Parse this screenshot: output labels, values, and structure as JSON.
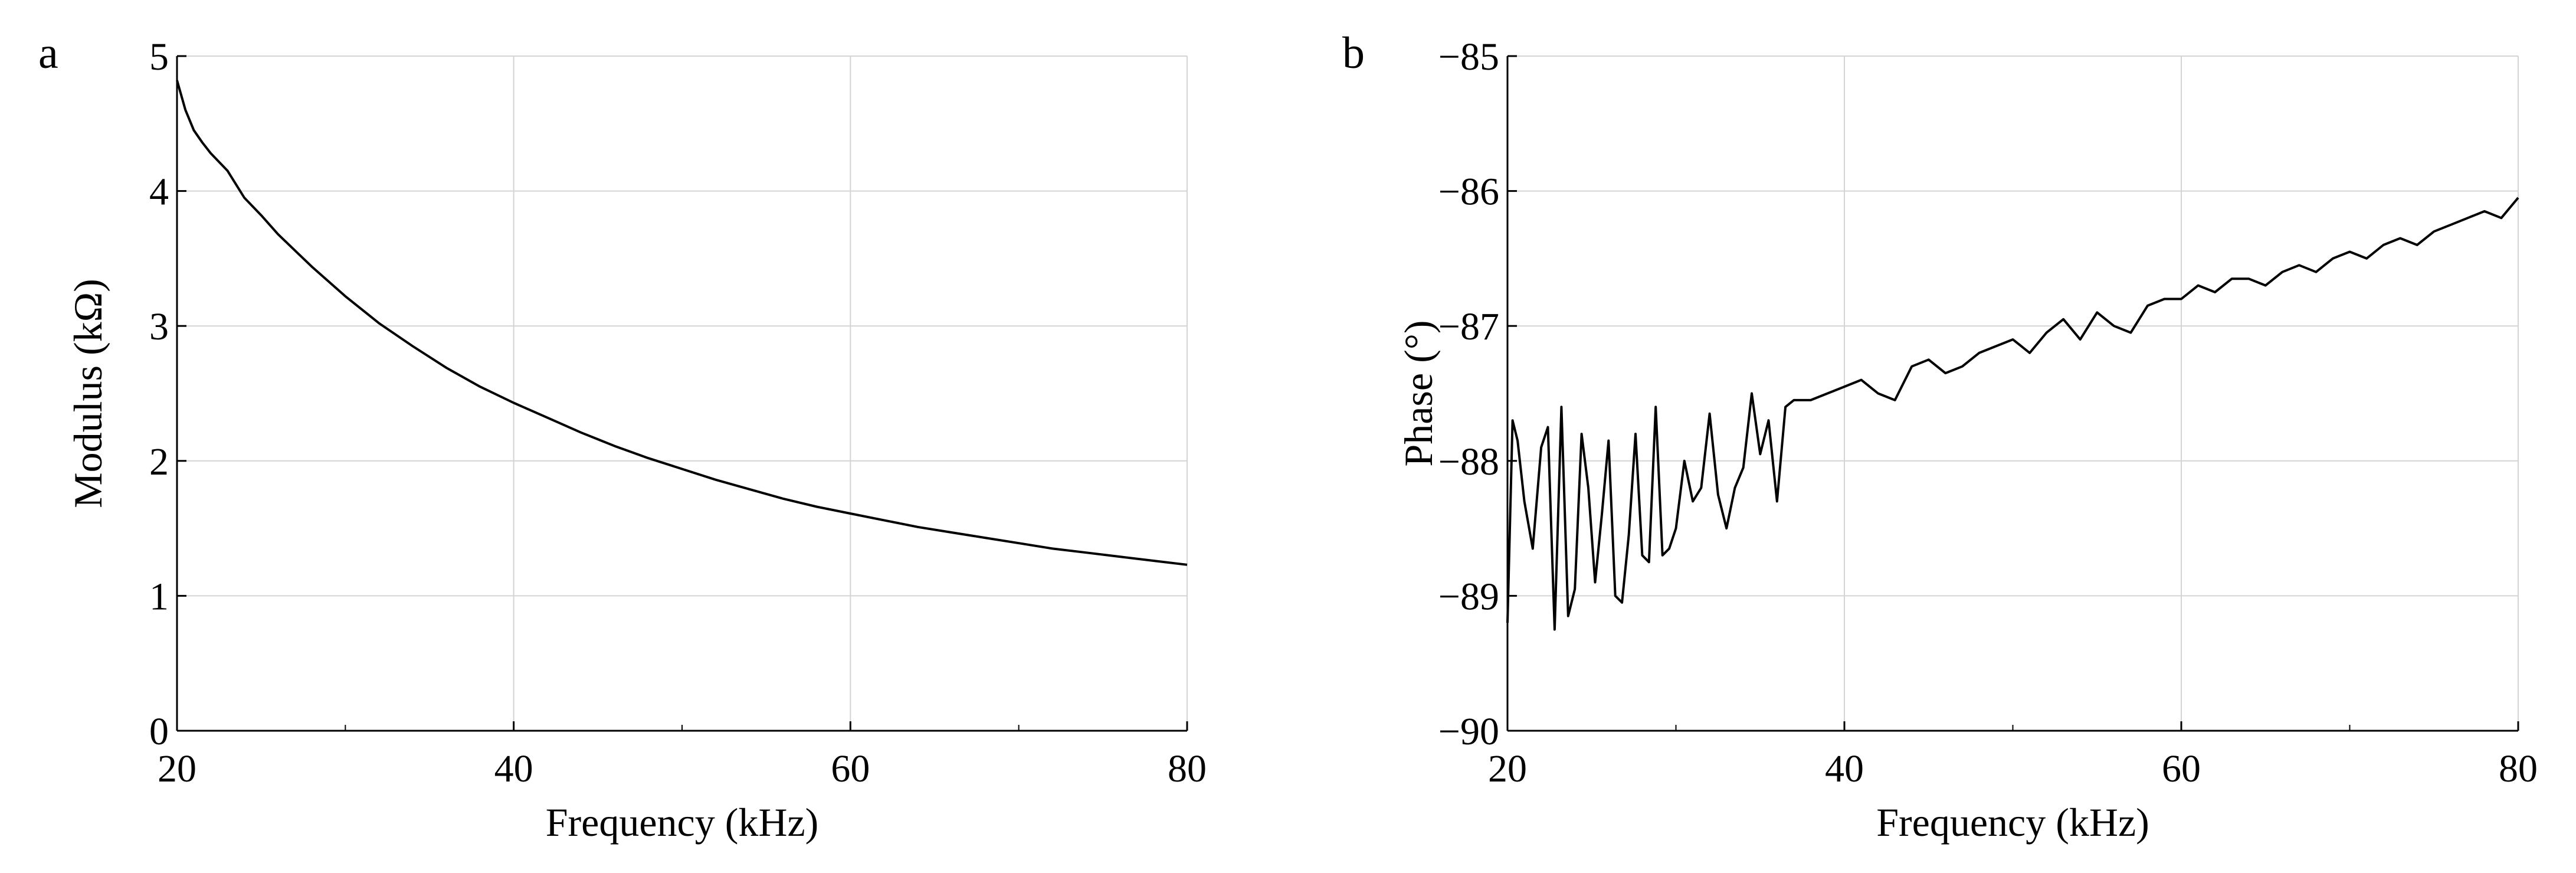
{
  "chart_data": [
    {
      "panel_label": "a",
      "type": "line",
      "title": "",
      "xlabel": "Frequency (kHz)",
      "ylabel": "Modulus (kΩ)",
      "xlim": [
        20,
        80
      ],
      "ylim": [
        0,
        5
      ],
      "xticks": [
        "20",
        "40",
        "60",
        "80"
      ],
      "yticks": [
        "0",
        "1",
        "2",
        "3",
        "4",
        "5"
      ],
      "grid": true,
      "series": [
        {
          "x": [
            20,
            20.5,
            21,
            21.5,
            22,
            23,
            24,
            25,
            26,
            27,
            28,
            29,
            30,
            32,
            34,
            36,
            38,
            40,
            42,
            44,
            46,
            48,
            50,
            52,
            54,
            56,
            58,
            60,
            62,
            64,
            66,
            68,
            70,
            72,
            74,
            76,
            78,
            80
          ],
          "y": [
            4.82,
            4.6,
            4.45,
            4.36,
            4.28,
            4.15,
            3.95,
            3.82,
            3.68,
            3.56,
            3.44,
            3.33,
            3.22,
            3.02,
            2.85,
            2.69,
            2.55,
            2.43,
            2.32,
            2.21,
            2.11,
            2.02,
            1.94,
            1.86,
            1.79,
            1.72,
            1.66,
            1.61,
            1.56,
            1.51,
            1.47,
            1.43,
            1.39,
            1.35,
            1.32,
            1.29,
            1.26,
            1.23
          ]
        }
      ]
    },
    {
      "panel_label": "b",
      "type": "line",
      "title": "",
      "xlabel": "Frequency (kHz)",
      "ylabel": "Phase (°)",
      "xlim": [
        20,
        80
      ],
      "ylim": [
        -90,
        -85
      ],
      "xticks": [
        "20",
        "40",
        "60",
        "80"
      ],
      "yticks": [
        "−90",
        "−89",
        "−88",
        "−87",
        "−86",
        "−85"
      ],
      "grid": true,
      "series": [
        {
          "x": [
            20,
            20.3,
            20.6,
            21,
            21.5,
            22,
            22.4,
            22.8,
            23.2,
            23.6,
            24,
            24.4,
            24.8,
            25.2,
            25.6,
            26,
            26.4,
            26.8,
            27.2,
            27.6,
            28,
            28.4,
            28.8,
            29.2,
            29.6,
            30,
            30.5,
            31,
            31.5,
            32,
            32.5,
            33,
            33.5,
            34,
            34.5,
            35,
            35.5,
            36,
            36.5,
            37,
            38,
            39,
            40,
            41,
            42,
            43,
            44,
            45,
            46,
            47,
            48,
            49,
            50,
            51,
            52,
            53,
            54,
            55,
            56,
            57,
            58,
            59,
            60,
            61,
            62,
            63,
            64,
            65,
            66,
            67,
            68,
            69,
            70,
            71,
            72,
            73,
            74,
            75,
            76,
            77,
            78,
            79,
            80
          ],
          "y": [
            -89.2,
            -87.7,
            -87.85,
            -88.3,
            -88.65,
            -87.9,
            -87.75,
            -89.25,
            -87.6,
            -89.15,
            -88.95,
            -87.8,
            -88.2,
            -88.9,
            -88.4,
            -87.85,
            -89,
            -89.05,
            -88.55,
            -87.8,
            -88.7,
            -88.75,
            -87.6,
            -88.7,
            -88.65,
            -88.5,
            -88,
            -88.3,
            -88.2,
            -87.65,
            -88.25,
            -88.5,
            -88.2,
            -88.05,
            -87.5,
            -87.95,
            -87.7,
            -88.3,
            -87.6,
            -87.55,
            -87.55,
            -87.5,
            -87.45,
            -87.4,
            -87.5,
            -87.55,
            -87.3,
            -87.25,
            -87.35,
            -87.3,
            -87.2,
            -87.15,
            -87.1,
            -87.2,
            -87.05,
            -86.95,
            -87.1,
            -86.9,
            -87,
            -87.05,
            -86.85,
            -86.8,
            -86.8,
            -86.7,
            -86.75,
            -86.65,
            -86.65,
            -86.7,
            -86.6,
            -86.55,
            -86.6,
            -86.5,
            -86.45,
            -86.5,
            -86.4,
            -86.35,
            -86.4,
            -86.3,
            -86.25,
            -86.2,
            -86.15,
            -86.2,
            -86.05
          ]
        }
      ]
    }
  ]
}
